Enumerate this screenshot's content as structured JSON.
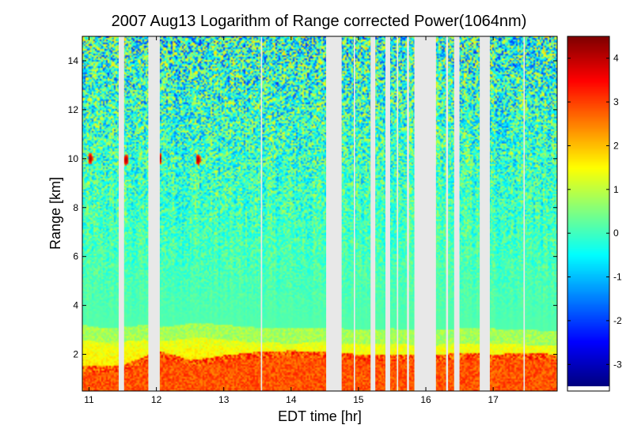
{
  "chart_data": {
    "type": "heatmap",
    "title": "2007 Aug13  Logarithm of Range corrected Power(1064nm)",
    "xlabel": "EDT time [hr]",
    "ylabel": "Range [km]",
    "xlim": [
      10.9,
      17.95
    ],
    "ylim": [
      0.5,
      15
    ],
    "xticks": [
      11,
      12,
      13,
      14,
      15,
      16,
      17
    ],
    "yticks": [
      2,
      4,
      6,
      8,
      10,
      12,
      14
    ],
    "colorbar": {
      "range": [
        -3.5,
        4.5
      ],
      "ticks": [
        -3,
        -2,
        -1,
        0,
        1,
        2,
        3,
        4
      ],
      "colormap": "jet"
    },
    "colors": {
      "nodata": "#e8e8e8"
    },
    "no_data_intervals": [
      [
        11.44,
        11.52
      ],
      [
        11.88,
        12.05
      ],
      [
        13.55,
        13.57
      ],
      [
        14.52,
        14.75
      ],
      [
        14.93,
        14.95
      ],
      [
        15.18,
        15.25
      ],
      [
        15.4,
        15.47
      ],
      [
        15.57,
        15.59
      ],
      [
        15.72,
        15.75
      ],
      [
        15.83,
        16.15
      ],
      [
        16.3,
        16.33
      ],
      [
        16.42,
        16.5
      ],
      [
        16.8,
        16.95
      ],
      [
        17.45,
        17.47
      ]
    ],
    "features": {
      "boundary_layer_top_km": [
        [
          10.9,
          2.6
        ],
        [
          11.3,
          2.45
        ],
        [
          11.8,
          2.6
        ],
        [
          12.2,
          2.55
        ],
        [
          12.6,
          2.7
        ],
        [
          13.0,
          2.6
        ],
        [
          13.5,
          2.5
        ],
        [
          14.0,
          2.45
        ],
        [
          14.5,
          2.5
        ],
        [
          15.0,
          2.4
        ],
        [
          15.5,
          2.45
        ],
        [
          16.0,
          2.35
        ],
        [
          16.5,
          2.45
        ],
        [
          17.0,
          2.45
        ],
        [
          17.5,
          2.4
        ],
        [
          17.95,
          2.35
        ]
      ],
      "cloud_base_km": [
        [
          10.9,
          1.25
        ],
        [
          11.45,
          1.25
        ],
        [
          12.05,
          1.9
        ],
        [
          12.5,
          1.5
        ],
        [
          13.0,
          1.7
        ],
        [
          13.5,
          1.85
        ],
        [
          14.0,
          1.9
        ],
        [
          14.5,
          1.85
        ],
        [
          15.0,
          1.75
        ],
        [
          15.5,
          1.7
        ],
        [
          16.0,
          1.7
        ],
        [
          16.5,
          1.8
        ],
        [
          17.0,
          1.75
        ],
        [
          17.5,
          1.8
        ],
        [
          17.95,
          1.75
        ]
      ],
      "high_cloud_patches": [
        {
          "time_hr": 11.02,
          "range_km": 10.0
        },
        {
          "time_hr": 11.55,
          "range_km": 9.95
        },
        {
          "time_hr": 12.05,
          "range_km": 10.0
        },
        {
          "time_hr": 12.62,
          "range_km": 9.95
        }
      ]
    }
  }
}
